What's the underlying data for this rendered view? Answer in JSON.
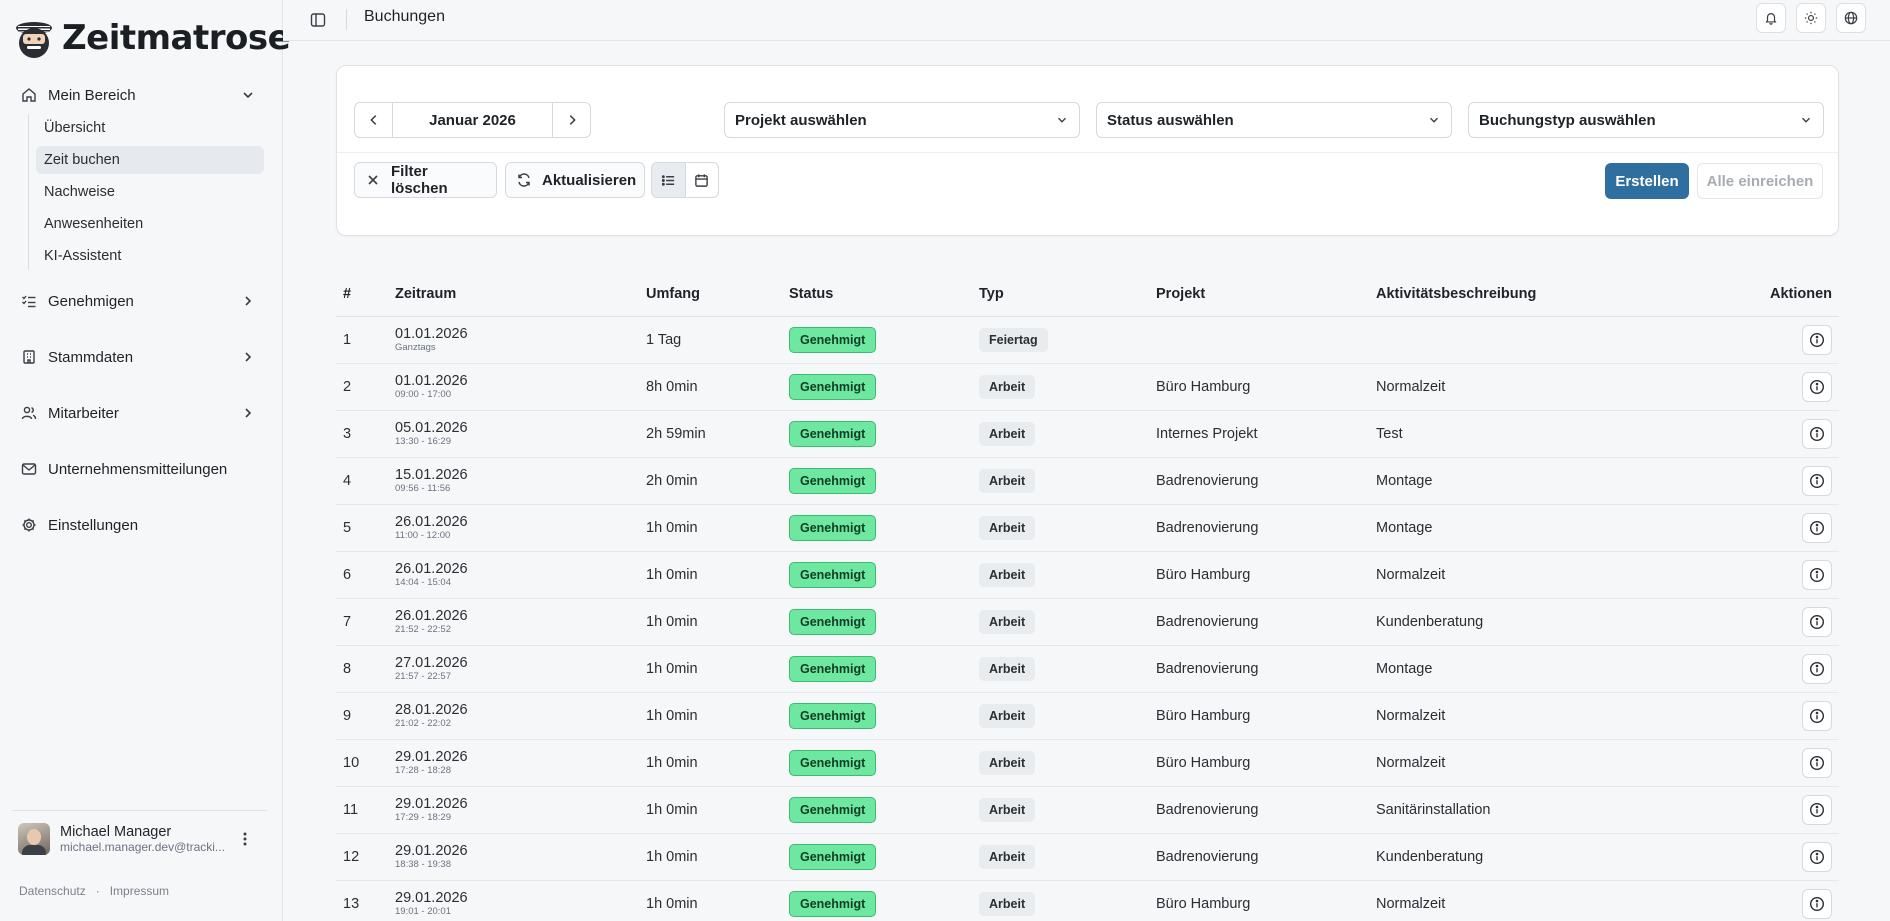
{
  "app": {
    "name": "Zeitmatrose"
  },
  "sidebar": {
    "main_group": {
      "label": "Mein Bereich"
    },
    "sub_items": [
      {
        "label": "Übersicht",
        "active": false
      },
      {
        "label": "Zeit buchen",
        "active": true
      },
      {
        "label": "Nachweise",
        "active": false
      },
      {
        "label": "Anwesenheiten",
        "active": false
      },
      {
        "label": "KI-Assistent",
        "active": false
      }
    ],
    "groups": [
      {
        "label": "Genehmigen",
        "icon": "list-check-icon"
      },
      {
        "label": "Stammdaten",
        "icon": "building-icon"
      },
      {
        "label": "Mitarbeiter",
        "icon": "users-icon"
      },
      {
        "label": "Unternehmensmitteilungen",
        "icon": "mail-icon"
      },
      {
        "label": "Einstellungen",
        "icon": "gear-icon"
      }
    ],
    "user": {
      "name": "Michael Manager",
      "email": "michael.manager.dev@tracki..."
    },
    "footer": {
      "privacy": "Datenschutz",
      "separator": "·",
      "imprint": "Impressum"
    }
  },
  "header": {
    "title": "Buchungen"
  },
  "filters": {
    "month": "Januar 2026",
    "project_select": "Projekt auswählen",
    "status_select": "Status auswählen",
    "type_select": "Buchungstyp auswählen",
    "clear_label": "Filter löschen",
    "refresh_label": "Aktualisieren",
    "create_label": "Erstellen",
    "submit_all_label": "Alle einreichen"
  },
  "table": {
    "columns": [
      "#",
      "Zeitraum",
      "Umfang",
      "Status",
      "Typ",
      "Projekt",
      "Aktivitätsbeschreibung",
      "Aktionen"
    ],
    "rows": [
      {
        "num": "1",
        "date": "01.01.2026",
        "time": "Ganztags",
        "scope": "1 Tag",
        "status": "Genehmigt",
        "type": "Feiertag",
        "project": "",
        "activity": ""
      },
      {
        "num": "2",
        "date": "01.01.2026",
        "time": "09:00 - 17:00",
        "scope": "8h 0min",
        "status": "Genehmigt",
        "type": "Arbeit",
        "project": "Büro Hamburg",
        "activity": "Normalzeit"
      },
      {
        "num": "3",
        "date": "05.01.2026",
        "time": "13:30 - 16:29",
        "scope": "2h 59min",
        "status": "Genehmigt",
        "type": "Arbeit",
        "project": "Internes Projekt",
        "activity": "Test"
      },
      {
        "num": "4",
        "date": "15.01.2026",
        "time": "09:56 - 11:56",
        "scope": "2h 0min",
        "status": "Genehmigt",
        "type": "Arbeit",
        "project": "Badrenovierung",
        "activity": "Montage"
      },
      {
        "num": "5",
        "date": "26.01.2026",
        "time": "11:00 - 12:00",
        "scope": "1h 0min",
        "status": "Genehmigt",
        "type": "Arbeit",
        "project": "Badrenovierung",
        "activity": "Montage"
      },
      {
        "num": "6",
        "date": "26.01.2026",
        "time": "14:04 - 15:04",
        "scope": "1h 0min",
        "status": "Genehmigt",
        "type": "Arbeit",
        "project": "Büro Hamburg",
        "activity": "Normalzeit"
      },
      {
        "num": "7",
        "date": "26.01.2026",
        "time": "21:52 - 22:52",
        "scope": "1h 0min",
        "status": "Genehmigt",
        "type": "Arbeit",
        "project": "Badrenovierung",
        "activity": "Kundenberatung"
      },
      {
        "num": "8",
        "date": "27.01.2026",
        "time": "21:57 - 22:57",
        "scope": "1h 0min",
        "status": "Genehmigt",
        "type": "Arbeit",
        "project": "Badrenovierung",
        "activity": "Montage"
      },
      {
        "num": "9",
        "date": "28.01.2026",
        "time": "21:02 - 22:02",
        "scope": "1h 0min",
        "status": "Genehmigt",
        "type": "Arbeit",
        "project": "Büro Hamburg",
        "activity": "Normalzeit"
      },
      {
        "num": "10",
        "date": "29.01.2026",
        "time": "17:28 - 18:28",
        "scope": "1h 0min",
        "status": "Genehmigt",
        "type": "Arbeit",
        "project": "Büro Hamburg",
        "activity": "Normalzeit"
      },
      {
        "num": "11",
        "date": "29.01.2026",
        "time": "17:29 - 18:29",
        "scope": "1h 0min",
        "status": "Genehmigt",
        "type": "Arbeit",
        "project": "Badrenovierung",
        "activity": "Sanitärinstallation"
      },
      {
        "num": "12",
        "date": "29.01.2026",
        "time": "18:38 - 19:38",
        "scope": "1h 0min",
        "status": "Genehmigt",
        "type": "Arbeit",
        "project": "Badrenovierung",
        "activity": "Kundenberatung"
      },
      {
        "num": "13",
        "date": "29.01.2026",
        "time": "19:01 - 20:01",
        "scope": "1h 0min",
        "status": "Genehmigt",
        "type": "Arbeit",
        "project": "Büro Hamburg",
        "activity": "Normalzeit"
      }
    ]
  },
  "colors": {
    "primary": "#2f6f9f",
    "approved_bg": "#6ee7a0",
    "approved_border": "#3dbb73"
  }
}
